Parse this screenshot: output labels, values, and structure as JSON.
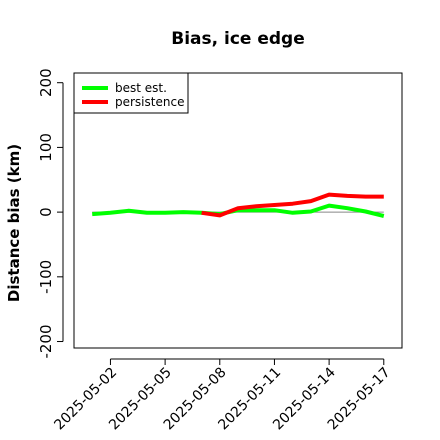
{
  "chart_data": {
    "type": "line",
    "title": "Bias, ice edge",
    "xlabel": "",
    "ylabel": "Distance bias (km)",
    "ylim": [
      -210,
      215
    ],
    "xlim": [
      "2025-04-30",
      "2025-05-18"
    ],
    "yticks": [
      -200,
      -100,
      0,
      100,
      200
    ],
    "yticklabels": [
      "-200",
      "-100",
      "0",
      "100",
      "200"
    ],
    "xticks": [
      "2025-05-02",
      "2025-05-05",
      "2025-05-08",
      "2025-05-11",
      "2025-05-14",
      "2025-05-17"
    ],
    "zero_line": true,
    "grid": false,
    "legend_position": "top-left",
    "series": [
      {
        "name": "best est.",
        "color": "#00ff00",
        "x": [
          "2025-05-01",
          "2025-05-02",
          "2025-05-03",
          "2025-05-04",
          "2025-05-05",
          "2025-05-06",
          "2025-05-07",
          "2025-05-08",
          "2025-05-09",
          "2025-05-10",
          "2025-05-11",
          "2025-05-12",
          "2025-05-13",
          "2025-05-14",
          "2025-05-15",
          "2025-05-16",
          "2025-05-17"
        ],
        "y": [
          -3,
          -1,
          2,
          -1,
          -1,
          0,
          -1,
          -3,
          3,
          3,
          3,
          -1,
          1,
          10,
          6,
          1,
          -6
        ]
      },
      {
        "name": "persistence",
        "color": "#ff0000",
        "x": [
          "2025-05-07",
          "2025-05-08",
          "2025-05-09",
          "2025-05-10",
          "2025-05-11",
          "2025-05-12",
          "2025-05-13",
          "2025-05-14",
          "2025-05-15",
          "2025-05-16",
          "2025-05-17"
        ],
        "y": [
          -1,
          -5,
          6,
          9,
          11,
          13,
          17,
          27,
          25,
          24,
          24
        ]
      }
    ]
  }
}
